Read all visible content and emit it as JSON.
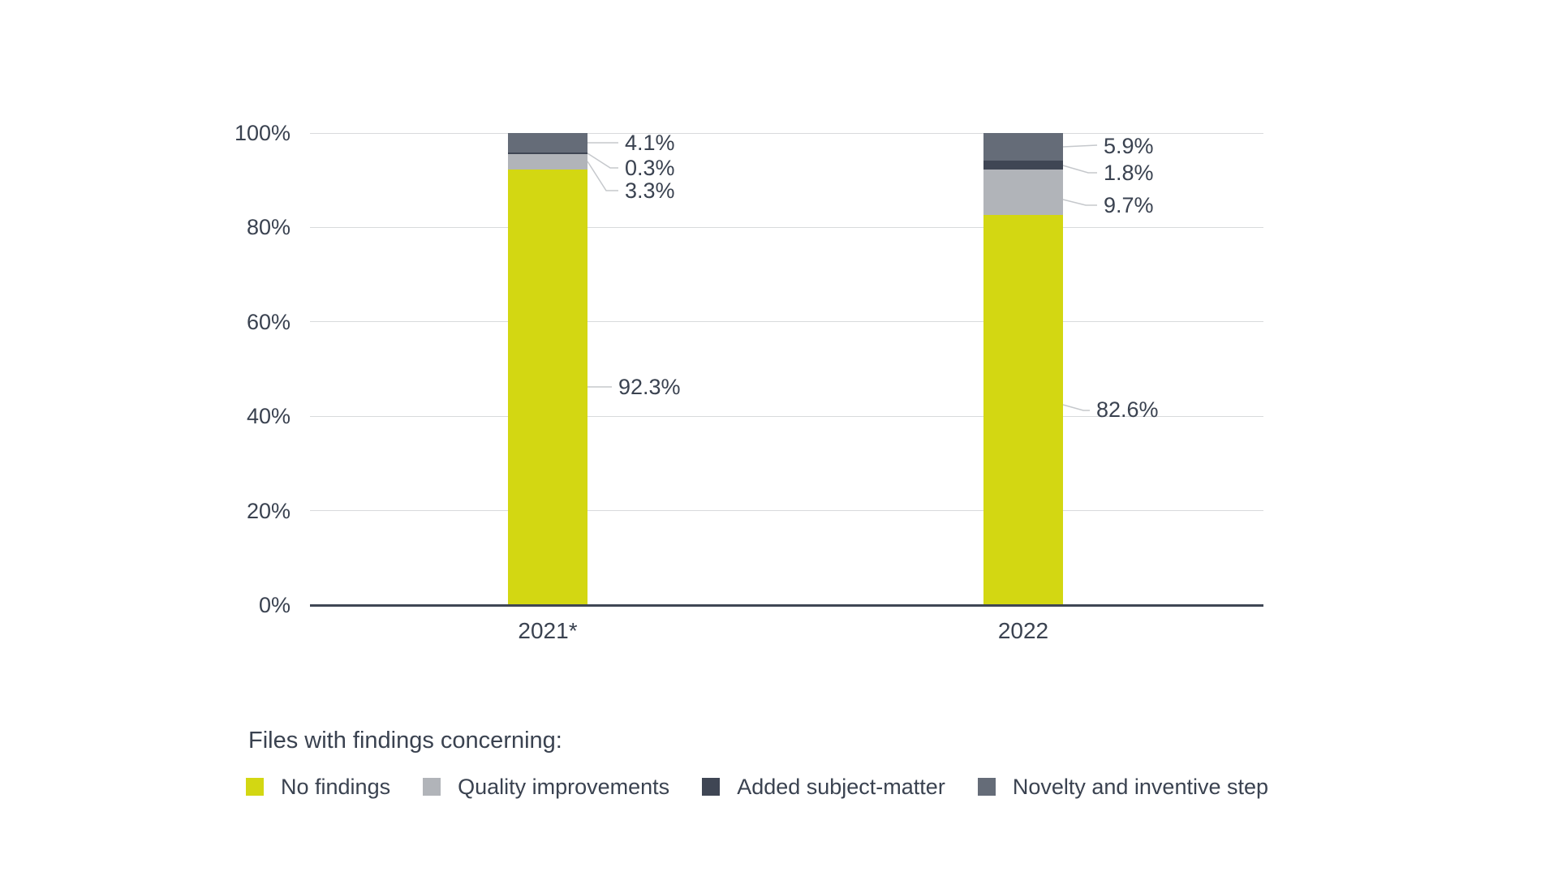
{
  "colors": {
    "text": "#3a4250",
    "grid": "#d8dadc",
    "leader": "#c5c8cc",
    "axis": "#3f4654",
    "background": "#ffffff"
  },
  "chart_data": {
    "type": "bar",
    "stacked": true,
    "orientation": "vertical",
    "categories": [
      "2021*",
      "2022"
    ],
    "series": [
      {
        "name": "No findings",
        "color": "#d3d712",
        "values": [
          92.3,
          82.6
        ],
        "labels": [
          "92.3%",
          "82.6%"
        ]
      },
      {
        "name": "Quality improvements",
        "color": "#b1b4b9",
        "values": [
          3.3,
          9.7
        ],
        "labels": [
          "3.3%",
          "9.7%"
        ]
      },
      {
        "name": "Added subject-matter",
        "color": "#3f4654",
        "values": [
          0.3,
          1.8
        ],
        "labels": [
          "0.3%",
          "1.8%"
        ]
      },
      {
        "name": "Novelty and inventive step",
        "color": "#656c78",
        "values": [
          4.1,
          5.9
        ],
        "labels": [
          "4.1%",
          "5.9%"
        ]
      }
    ],
    "ylim": [
      0,
      100
    ],
    "y_tick_values": [
      0,
      20,
      40,
      60,
      80,
      100
    ],
    "y_tick_labels": [
      "0%",
      "20%",
      "40%",
      "60%",
      "80%",
      "100%"
    ],
    "grid": true,
    "legend_title": "Files with findings concerning:",
    "legend_position": "bottom"
  }
}
